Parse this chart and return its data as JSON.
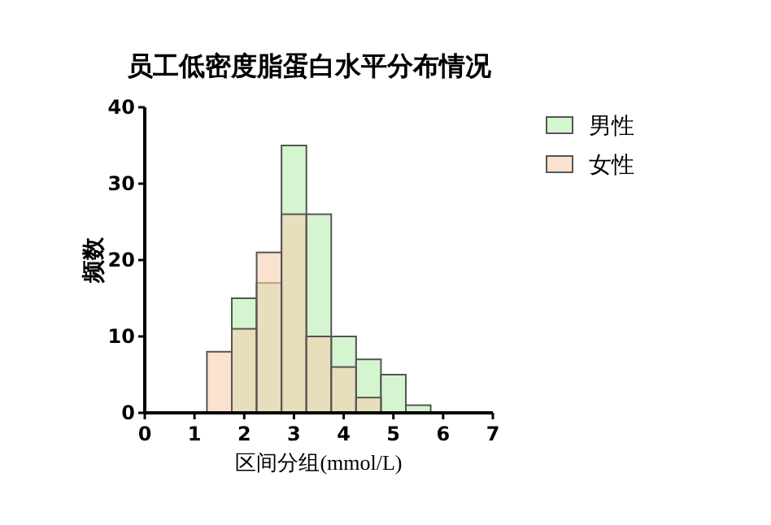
{
  "chart_data": {
    "type": "histogram",
    "title": "员工低密度脂蛋白水平分布情况",
    "xlabel": "区间分组(mmol/L)",
    "ylabel": "频数",
    "bins": [
      1.25,
      1.75,
      2.25,
      2.75,
      3.25,
      3.75,
      4.25,
      4.75,
      5.25,
      5.75
    ],
    "series": [
      {
        "name": "男性",
        "color": "#d5f5d0",
        "values": [
          0,
          15,
          17,
          35,
          26,
          10,
          7,
          5,
          1
        ]
      },
      {
        "name": "女性",
        "color": "#f7cfae",
        "values": [
          8,
          11,
          21,
          26,
          10,
          6,
          2,
          0,
          0
        ]
      }
    ],
    "xlim": [
      0,
      7
    ],
    "xticks": [
      0,
      1,
      2,
      3,
      4,
      5,
      6,
      7
    ],
    "ylim": [
      0,
      40
    ],
    "yticks": [
      0,
      10,
      20,
      30,
      40
    ],
    "legend": "top right"
  }
}
